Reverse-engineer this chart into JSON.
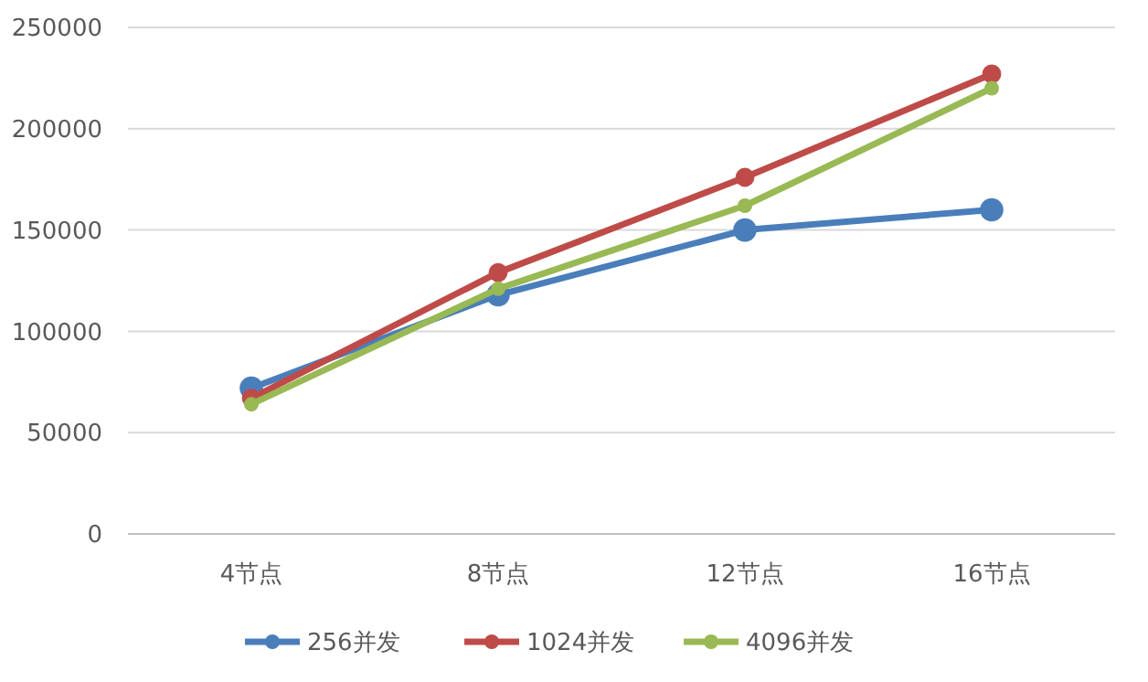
{
  "chart_data": {
    "type": "line",
    "categories": [
      "4节点",
      "8节点",
      "12节点",
      "16节点"
    ],
    "series": [
      {
        "name": "256并发",
        "color": "#4a7ebb",
        "values": [
          72000,
          118000,
          150000,
          160000
        ]
      },
      {
        "name": "1024并发",
        "color": "#be4b48",
        "values": [
          67000,
          129000,
          176000,
          227000
        ]
      },
      {
        "name": "4096并发",
        "color": "#98b954",
        "values": [
          64000,
          121000,
          162000,
          220000
        ]
      }
    ],
    "ylim": [
      0,
      250000
    ],
    "yticks": [
      0,
      50000,
      100000,
      150000,
      200000,
      250000
    ],
    "grid": "y",
    "legend": "bottom",
    "marker": "circle",
    "line_style": "solid"
  }
}
